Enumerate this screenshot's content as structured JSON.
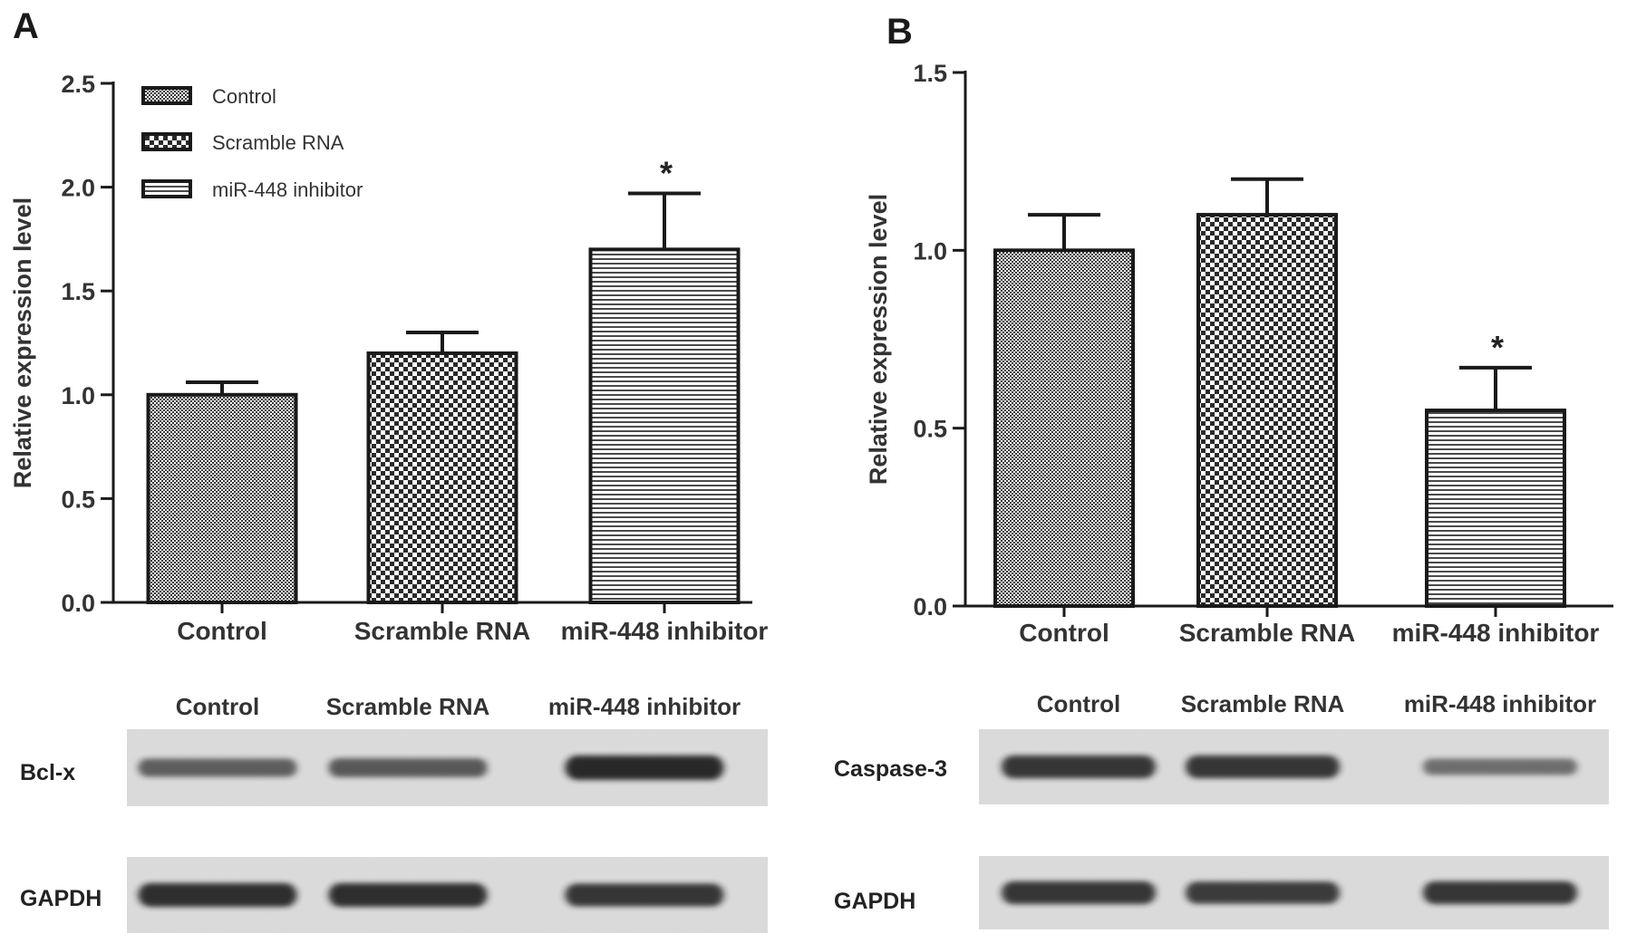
{
  "panels": [
    {
      "label": "A",
      "chart_data": {
        "type": "bar",
        "categories": [
          "Control",
          "Scramble RNA",
          "miR-448 inhibitor"
        ],
        "values": [
          1.0,
          1.2,
          1.7
        ],
        "errors": [
          0.06,
          0.1,
          0.27
        ],
        "significance": [
          "",
          "",
          "*"
        ],
        "ylabel": "Relative expression level",
        "ylim": [
          0,
          2.5
        ],
        "yticks": [
          "0.0",
          "0.5",
          "1.0",
          "1.5",
          "2.0",
          "2.5"
        ],
        "yticks_values": [
          0,
          0.5,
          1.0,
          1.5,
          2.0,
          2.5
        ],
        "grid": false,
        "legend": {
          "placement": "top-left",
          "entries": [
            "Control",
            "Scramble RNA",
            "miR-448 inhibitor"
          ]
        },
        "patterns": [
          "fine-check",
          "coarse-check",
          "horizontal-lines"
        ]
      },
      "blot": {
        "lanes": [
          "Control",
          "Scramble RNA",
          "miR-448 inhibitor"
        ],
        "rows": [
          {
            "protein": "Bcl-x",
            "intensities": [
              0.55,
              0.6,
              0.95
            ]
          },
          {
            "protein": "GAPDH",
            "intensities": [
              0.9,
              0.9,
              0.85
            ]
          }
        ]
      }
    },
    {
      "label": "B",
      "chart_data": {
        "type": "bar",
        "categories": [
          "Control",
          "Scramble RNA",
          "miR-448 inhibitor"
        ],
        "values": [
          1.0,
          1.1,
          0.55
        ],
        "errors": [
          0.1,
          0.1,
          0.12
        ],
        "significance": [
          "",
          "",
          "*"
        ],
        "ylabel": "Relative expression level",
        "ylim": [
          0,
          1.5
        ],
        "yticks": [
          "0.0",
          "0.5",
          "1.0",
          "1.5"
        ],
        "yticks_values": [
          0,
          0.5,
          1.0,
          1.5
        ],
        "grid": false,
        "patterns": [
          "fine-check",
          "coarse-check",
          "horizontal-lines"
        ]
      },
      "blot": {
        "lanes": [
          "Control",
          "Scramble RNA",
          "miR-448 inhibitor"
        ],
        "rows": [
          {
            "protein": "Caspase-3",
            "intensities": [
              0.85,
              0.85,
              0.45
            ]
          },
          {
            "protein": "GAPDH",
            "intensities": [
              0.85,
              0.8,
              0.85
            ]
          }
        ]
      }
    }
  ],
  "colors": {
    "bar_stroke": "#1a1a1a",
    "pattern_dark": "#3a3a3a",
    "pattern_light": "#ffffff",
    "blot_background": "#dcdcdc",
    "band": "#1a1a1a"
  }
}
